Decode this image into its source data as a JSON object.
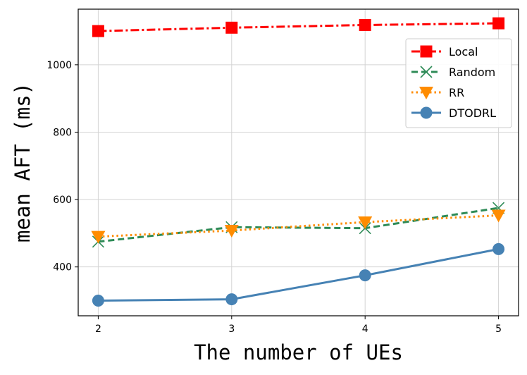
{
  "chart_data": {
    "type": "line",
    "title": "",
    "xlabel": "The number of UEs",
    "ylabel": "mean AFT (ms)",
    "x": [
      2,
      3,
      4,
      5
    ],
    "xlim": [
      1.85,
      5.15
    ],
    "ylim": [
      255,
      1165
    ],
    "xticks": [
      2,
      3,
      4,
      5
    ],
    "yticks": [
      400,
      600,
      800,
      1000
    ],
    "grid": true,
    "legend_position": "top-right",
    "series": [
      {
        "name": "Local",
        "values": [
          1100,
          1110,
          1118,
          1123
        ],
        "color": "#ff0000",
        "marker": "square",
        "dash": "dashdot"
      },
      {
        "name": "Random",
        "values": [
          475,
          518,
          515,
          575
        ],
        "color": "#2e8b57",
        "marker": "x",
        "dash": "dashed"
      },
      {
        "name": "RR",
        "values": [
          490,
          508,
          533,
          553
        ],
        "color": "#ff8c00",
        "marker": "triangle-down",
        "dash": "dotted"
      },
      {
        "name": "DTODRL",
        "values": [
          300,
          304,
          375,
          453
        ],
        "color": "#4682b4",
        "marker": "circle",
        "dash": "solid"
      }
    ]
  }
}
